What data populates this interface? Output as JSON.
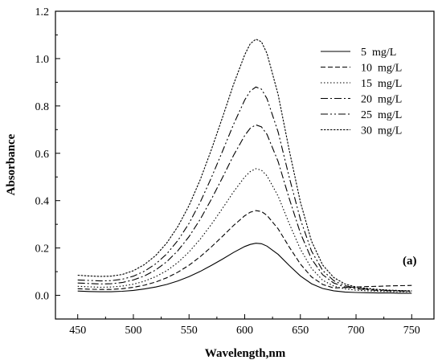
{
  "chart_data": {
    "type": "line",
    "xlabel": "Wavelength,nm",
    "ylabel": "Absorbance",
    "xlim": [
      430,
      770
    ],
    "ylim": [
      -0.1,
      1.2
    ],
    "xticks": [
      450,
      500,
      550,
      600,
      650,
      700,
      750
    ],
    "yticks": [
      0.0,
      0.2,
      0.4,
      0.6,
      0.8,
      1.0,
      1.2
    ],
    "xtick_labels": [
      "450",
      "500",
      "550",
      "600",
      "650",
      "700",
      "750"
    ],
    "ytick_labels": [
      "0.0",
      "0.2",
      "0.4",
      "0.6",
      "0.8",
      "1.0",
      "1.2"
    ],
    "grid": false,
    "legend_position": "top-right",
    "annotation": "(a)",
    "x": [
      450,
      460,
      470,
      480,
      490,
      500,
      510,
      520,
      530,
      540,
      550,
      560,
      570,
      580,
      590,
      600,
      605,
      610,
      615,
      620,
      630,
      640,
      650,
      660,
      670,
      680,
      690,
      700,
      710,
      720,
      730,
      740,
      750
    ],
    "series": [
      {
        "name": "5  mg/L",
        "dash": "solid",
        "values": [
          0.018,
          0.016,
          0.015,
          0.015,
          0.017,
          0.021,
          0.027,
          0.035,
          0.046,
          0.061,
          0.079,
          0.101,
          0.126,
          0.153,
          0.181,
          0.206,
          0.215,
          0.22,
          0.218,
          0.208,
          0.173,
          0.126,
          0.082,
          0.049,
          0.029,
          0.019,
          0.014,
          0.012,
          0.011,
          0.01,
          0.01,
          0.009,
          0.009
        ]
      },
      {
        "name": "10  mg/L",
        "dash": "6,3",
        "values": [
          0.028,
          0.026,
          0.025,
          0.025,
          0.028,
          0.034,
          0.043,
          0.056,
          0.074,
          0.098,
          0.127,
          0.163,
          0.204,
          0.249,
          0.295,
          0.336,
          0.351,
          0.358,
          0.354,
          0.338,
          0.281,
          0.204,
          0.132,
          0.078,
          0.046,
          0.031,
          0.033,
          0.035,
          0.037,
          0.038,
          0.04,
          0.041,
          0.042
        ]
      },
      {
        "name": "15  mg/L",
        "dash": "1.5,2.5",
        "values": [
          0.038,
          0.036,
          0.034,
          0.035,
          0.039,
          0.047,
          0.06,
          0.079,
          0.104,
          0.139,
          0.183,
          0.237,
          0.299,
          0.367,
          0.437,
          0.5,
          0.523,
          0.535,
          0.529,
          0.505,
          0.419,
          0.303,
          0.195,
          0.114,
          0.064,
          0.039,
          0.027,
          0.022,
          0.019,
          0.017,
          0.016,
          0.015,
          0.015
        ]
      },
      {
        "name": "20  mg/L",
        "dash": "9,3,2,3",
        "values": [
          0.052,
          0.05,
          0.048,
          0.049,
          0.054,
          0.065,
          0.082,
          0.107,
          0.142,
          0.189,
          0.248,
          0.321,
          0.405,
          0.497,
          0.591,
          0.675,
          0.706,
          0.72,
          0.712,
          0.68,
          0.565,
          0.409,
          0.263,
          0.154,
          0.087,
          0.052,
          0.035,
          0.028,
          0.024,
          0.021,
          0.019,
          0.018,
          0.017
        ]
      },
      {
        "name": "25  mg/L",
        "dash": "9,3,2,3,2,3",
        "values": [
          0.065,
          0.063,
          0.061,
          0.062,
          0.068,
          0.081,
          0.102,
          0.133,
          0.175,
          0.232,
          0.304,
          0.393,
          0.496,
          0.608,
          0.722,
          0.825,
          0.863,
          0.88,
          0.871,
          0.831,
          0.69,
          0.499,
          0.321,
          0.187,
          0.105,
          0.062,
          0.041,
          0.031,
          0.026,
          0.023,
          0.021,
          0.019,
          0.018
        ]
      },
      {
        "name": "30  mg/L",
        "dash": "2.5,1.5",
        "values": [
          0.085,
          0.082,
          0.08,
          0.081,
          0.088,
          0.104,
          0.13,
          0.168,
          0.221,
          0.291,
          0.379,
          0.488,
          0.614,
          0.751,
          0.891,
          1.016,
          1.063,
          1.082,
          1.071,
          1.022,
          0.848,
          0.613,
          0.394,
          0.229,
          0.128,
          0.075,
          0.048,
          0.035,
          0.029,
          0.025,
          0.022,
          0.02,
          0.019
        ]
      }
    ]
  }
}
